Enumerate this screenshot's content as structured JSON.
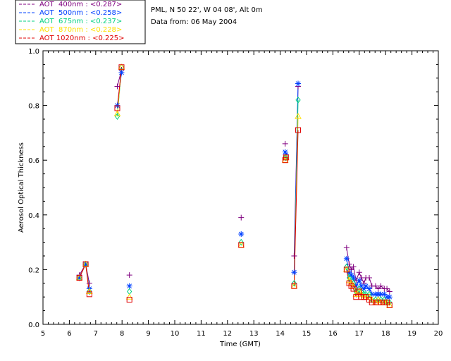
{
  "chart_data": {
    "type": "scatter",
    "xlabel": "Time (GMT)",
    "ylabel": "Aerosol Optical Thickness",
    "xlim": [
      5,
      20
    ],
    "ylim": [
      0.0,
      1.0
    ],
    "xticks": [
      "5",
      "6",
      "7",
      "8",
      "9",
      "10",
      "11",
      "12",
      "13",
      "14",
      "15",
      "16",
      "17",
      "18",
      "19",
      "20"
    ],
    "yticks": [
      "0.0",
      "0.2",
      "0.4",
      "0.6",
      "0.8",
      "1.0"
    ],
    "site": "PML, N 50 22', W 04 08', Alt 0m",
    "date": "Data from: 06 May 2004",
    "series": [
      {
        "name": "AOT 400nm",
        "legend_prefix": "AOT  400nm : ",
        "mean_label": "<0.287>",
        "color": "#800080",
        "marker": "plus",
        "x": [
          6.38,
          6.62,
          6.76,
          7.82,
          7.98,
          8.28,
          12.52,
          14.19,
          14.22,
          14.53,
          14.68,
          16.52,
          16.62,
          16.7,
          16.78,
          16.88,
          17.0,
          17.08,
          17.18,
          17.25,
          17.38,
          17.48,
          17.62,
          17.72,
          17.82,
          17.95,
          18.05,
          18.15
        ],
        "y": [
          0.18,
          0.22,
          0.15,
          0.87,
          0.93,
          0.18,
          0.39,
          0.66,
          0.62,
          0.25,
          0.87,
          0.28,
          0.22,
          0.2,
          0.21,
          0.16,
          0.19,
          0.17,
          0.15,
          0.17,
          0.17,
          0.14,
          0.14,
          0.13,
          0.14,
          0.13,
          0.13,
          0.12
        ]
      },
      {
        "name": "AOT 500nm",
        "legend_prefix": "AOT  500nm : ",
        "mean_label": "<0.258>",
        "color": "#0040ff",
        "marker": "asterisk",
        "x": [
          6.38,
          6.62,
          6.76,
          7.82,
          7.98,
          8.28,
          12.52,
          14.19,
          14.22,
          14.53,
          14.68,
          16.52,
          16.62,
          16.7,
          16.78,
          16.88,
          17.0,
          17.08,
          17.18,
          17.25,
          17.38,
          17.48,
          17.62,
          17.72,
          17.82,
          17.95,
          18.05,
          18.15
        ],
        "y": [
          0.17,
          0.22,
          0.13,
          0.8,
          0.92,
          0.14,
          0.33,
          0.63,
          0.62,
          0.19,
          0.88,
          0.24,
          0.19,
          0.18,
          0.17,
          0.14,
          0.16,
          0.14,
          0.13,
          0.14,
          0.13,
          0.11,
          0.11,
          0.11,
          0.11,
          0.11,
          0.1,
          0.1
        ]
      },
      {
        "name": "AOT 675nm",
        "legend_prefix": "AOT  675nm : ",
        "mean_label": "<0.237>",
        "color": "#00d080",
        "marker": "diamond",
        "x": [
          6.38,
          6.62,
          6.76,
          7.82,
          7.98,
          8.28,
          12.52,
          14.19,
          14.22,
          14.53,
          14.68,
          16.52,
          16.62,
          16.7,
          16.78,
          16.88,
          17.0,
          17.08,
          17.18,
          17.25,
          17.38,
          17.48,
          17.62,
          17.72,
          17.82,
          17.95,
          18.05,
          18.15
        ],
        "y": [
          0.17,
          0.22,
          0.12,
          0.76,
          0.94,
          0.12,
          0.3,
          0.61,
          0.61,
          0.15,
          0.82,
          0.21,
          0.17,
          0.16,
          0.15,
          0.12,
          0.13,
          0.12,
          0.11,
          0.11,
          0.11,
          0.09,
          0.09,
          0.09,
          0.09,
          0.09,
          0.08,
          0.08
        ]
      },
      {
        "name": "AOT 870nm",
        "legend_prefix": "AOT  870nm : ",
        "mean_label": "<0.228>",
        "color": "#ffe000",
        "marker": "triangle",
        "x": [
          6.38,
          6.62,
          6.76,
          7.82,
          7.98,
          8.28,
          12.52,
          14.19,
          14.22,
          14.53,
          14.68,
          16.52,
          16.62,
          16.7,
          16.78,
          16.88,
          17.0,
          17.08,
          17.18,
          17.25,
          17.38,
          17.48,
          17.62,
          17.72,
          17.82,
          17.95,
          18.05,
          18.15
        ],
        "y": [
          0.17,
          0.22,
          0.12,
          0.77,
          0.94,
          0.1,
          0.29,
          0.6,
          0.61,
          0.14,
          0.76,
          0.2,
          0.16,
          0.15,
          0.14,
          0.11,
          0.12,
          0.11,
          0.1,
          0.1,
          0.1,
          0.09,
          0.08,
          0.09,
          0.08,
          0.08,
          0.08,
          0.07
        ]
      },
      {
        "name": "AOT 1020nm",
        "legend_prefix": "AOT 1020nm : ",
        "mean_label": "<0.225>",
        "color": "#e00000",
        "marker": "square",
        "x": [
          6.38,
          6.62,
          6.76,
          7.82,
          7.98,
          8.28,
          12.52,
          14.19,
          14.22,
          14.53,
          14.68,
          16.52,
          16.62,
          16.7,
          16.78,
          16.88,
          17.0,
          17.08,
          17.18,
          17.25,
          17.38,
          17.48,
          17.62,
          17.72,
          17.82,
          17.95,
          18.05,
          18.15
        ],
        "y": [
          0.17,
          0.22,
          0.11,
          0.79,
          0.94,
          0.09,
          0.29,
          0.6,
          0.61,
          0.14,
          0.71,
          0.2,
          0.15,
          0.14,
          0.13,
          0.1,
          0.12,
          0.1,
          0.1,
          0.1,
          0.09,
          0.08,
          0.08,
          0.08,
          0.08,
          0.08,
          0.08,
          0.07
        ]
      }
    ],
    "segments": [
      [
        0,
        1,
        2
      ],
      [
        3,
        4
      ],
      [
        9,
        10
      ],
      [
        11,
        12,
        13,
        14,
        15,
        16,
        17,
        18,
        19,
        20,
        21,
        22,
        23,
        24,
        25,
        26,
        27
      ]
    ]
  }
}
